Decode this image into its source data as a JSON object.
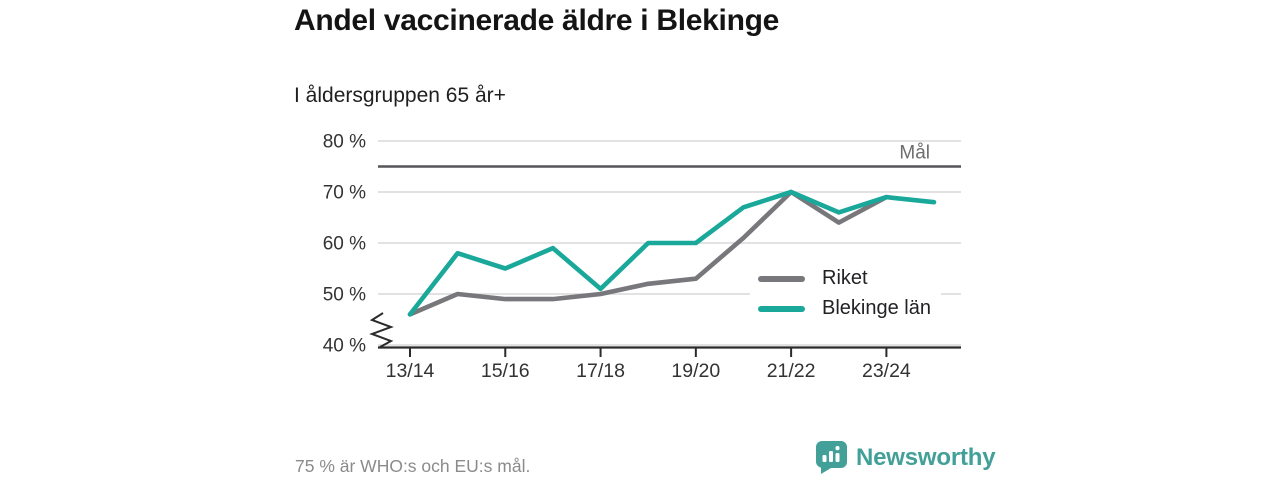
{
  "header": {
    "title": "Andel vaccinerade äldre i Blekinge",
    "subtitle": "I åldersgruppen 65 år+"
  },
  "chart_data": {
    "type": "line",
    "x": [
      "13/14",
      "14/15",
      "15/16",
      "16/17",
      "17/18",
      "18/19",
      "19/20",
      "20/21",
      "21/22",
      "22/23",
      "23/24",
      "24/25"
    ],
    "x_tick_labels": [
      "13/14",
      "15/16",
      "17/18",
      "19/20",
      "21/22",
      "23/24"
    ],
    "x_tick_indices": [
      0,
      2,
      4,
      6,
      8,
      10
    ],
    "series": [
      {
        "name": "Riket",
        "color": "#77777c",
        "values": [
          46,
          50,
          49,
          49,
          50,
          52,
          53,
          61,
          70,
          64,
          69,
          null
        ]
      },
      {
        "name": "Blekinge län",
        "color": "#19a89a",
        "values": [
          46,
          58,
          55,
          59,
          51,
          60,
          60,
          67,
          70,
          66,
          69,
          68
        ]
      }
    ],
    "ylim": [
      40,
      80
    ],
    "yticks": [
      40,
      50,
      60,
      70,
      80
    ],
    "y_tick_suffix": " %",
    "axis_break_at_origin": true,
    "target_line": {
      "value": 75,
      "label": "Mål"
    },
    "grid": "horizontal",
    "legend_position": "inside-right"
  },
  "footer": {
    "note": "75 % är WHO:s och EU:s mål.",
    "brand": "Newsworthy"
  },
  "colors": {
    "grid": "#d9d9d9",
    "axis": "#2b2b2b",
    "tick_label": "#333333",
    "target_line": "#55555a",
    "target_label": "#6d6d6d",
    "brand_teal": "#42a098"
  }
}
